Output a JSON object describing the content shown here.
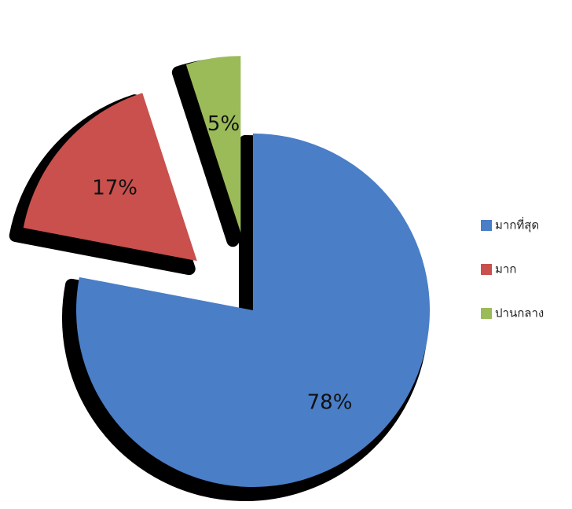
{
  "chart_data": {
    "type": "pie",
    "categories": [
      "มากที่สุด",
      "มาก",
      "ปานกลาง"
    ],
    "values": [
      78,
      17,
      5
    ],
    "value_labels": [
      "78%",
      "17%",
      "5%"
    ],
    "colors": [
      "#4a7ec6",
      "#c9504d",
      "#9bbb59"
    ],
    "legend": "right"
  }
}
